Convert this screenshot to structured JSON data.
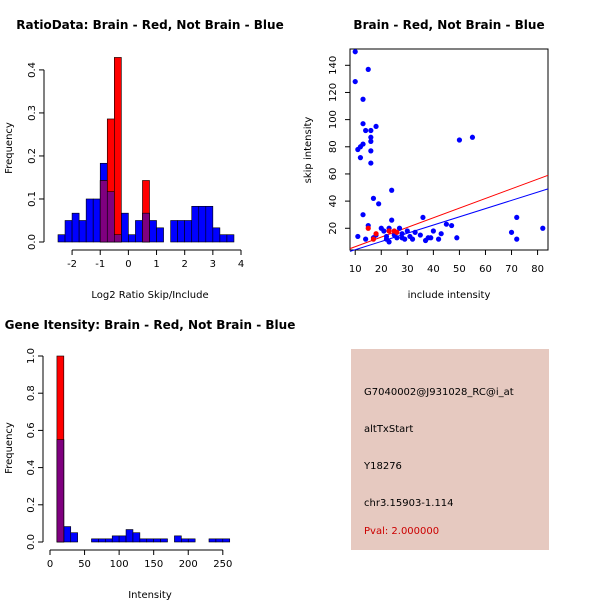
{
  "colors": {
    "red": "#ff0000",
    "blue": "#0000ff",
    "overlap": "#7f007f",
    "panel": "#e6c9c0",
    "pval": "#cc0000"
  },
  "chart_data": [
    {
      "type": "histogram",
      "title": "RatioData: Brain - Red, Not Brain - Blue",
      "xlabel": "Log2 Ratio Skip/Include",
      "ylabel": "Frequency",
      "xlim": [
        -2.5,
        4.0
      ],
      "ylim": [
        0,
        0.43
      ],
      "xticks": [
        -2,
        -1,
        0,
        1,
        2,
        3,
        4
      ],
      "yticks": [
        0.0,
        0.1,
        0.2,
        0.3,
        0.4
      ],
      "ytick_labels": [
        "0.0",
        "0.1",
        "0.2",
        "0.3",
        "0.4"
      ],
      "bin_width": 0.25,
      "series": [
        {
          "name": "Not Brain",
          "color": "blue",
          "bins": [
            [
              -2.5,
              0.017
            ],
            [
              -2.25,
              0.05
            ],
            [
              -2.0,
              0.067
            ],
            [
              -1.75,
              0.05
            ],
            [
              -1.5,
              0.1
            ],
            [
              -1.25,
              0.1
            ],
            [
              -1.0,
              0.183
            ],
            [
              -0.75,
              0.117
            ],
            [
              -0.5,
              0.017
            ],
            [
              -0.25,
              0.067
            ],
            [
              0.0,
              0.017
            ],
            [
              0.25,
              0.05
            ],
            [
              0.5,
              0.067
            ],
            [
              0.75,
              0.05
            ],
            [
              1.0,
              0.033
            ],
            [
              1.5,
              0.05
            ],
            [
              1.75,
              0.05
            ],
            [
              2.0,
              0.05
            ],
            [
              2.25,
              0.083
            ],
            [
              2.5,
              0.083
            ],
            [
              2.75,
              0.083
            ],
            [
              3.0,
              0.033
            ],
            [
              3.25,
              0.017
            ],
            [
              3.5,
              0.017
            ]
          ]
        },
        {
          "name": "Brain",
          "color": "red",
          "bins": [
            [
              -1.0,
              0.143
            ],
            [
              -0.75,
              0.286
            ],
            [
              -0.5,
              0.429
            ],
            [
              0.5,
              0.143
            ]
          ]
        }
      ]
    },
    {
      "type": "scatter",
      "title": "Brain - Red, Not Brain - Blue",
      "xlabel": "include intensity",
      "ylabel": "skip intensity",
      "xlim": [
        8,
        84
      ],
      "ylim": [
        4,
        152
      ],
      "xticks": [
        10,
        20,
        30,
        40,
        50,
        60,
        70,
        80
      ],
      "yticks": [
        20,
        40,
        60,
        80,
        100,
        120,
        140
      ],
      "lines": [
        {
          "color": "red",
          "x": [
            8,
            84
          ],
          "y": [
            5,
            59
          ]
        },
        {
          "color": "blue",
          "x": [
            8,
            84
          ],
          "y": [
            3,
            49
          ]
        }
      ],
      "series": [
        {
          "name": "Not Brain",
          "color": "blue",
          "points": [
            [
              10,
              150
            ],
            [
              10,
              128
            ],
            [
              11,
              78
            ],
            [
              11,
              14
            ],
            [
              12,
              80
            ],
            [
              12,
              72
            ],
            [
              13,
              115
            ],
            [
              13,
              97
            ],
            [
              13,
              82
            ],
            [
              13,
              30
            ],
            [
              14,
              92
            ],
            [
              14,
              12
            ],
            [
              15,
              137
            ],
            [
              15,
              22
            ],
            [
              16,
              92
            ],
            [
              16,
              87
            ],
            [
              16,
              84
            ],
            [
              16,
              77
            ],
            [
              16,
              68
            ],
            [
              17,
              42
            ],
            [
              17,
              13
            ],
            [
              18,
              95
            ],
            [
              18,
              15
            ],
            [
              19,
              38
            ],
            [
              20,
              20
            ],
            [
              21,
              18
            ],
            [
              22,
              12
            ],
            [
              22,
              14
            ],
            [
              23,
              20
            ],
            [
              23,
              10
            ],
            [
              24,
              48
            ],
            [
              24,
              26
            ],
            [
              25,
              15
            ],
            [
              26,
              13
            ],
            [
              27,
              20
            ],
            [
              28,
              16
            ],
            [
              28,
              13
            ],
            [
              29,
              12
            ],
            [
              30,
              18
            ],
            [
              31,
              14
            ],
            [
              32,
              12
            ],
            [
              33,
              17
            ],
            [
              35,
              15
            ],
            [
              36,
              28
            ],
            [
              37,
              11
            ],
            [
              38,
              13
            ],
            [
              39,
              13
            ],
            [
              40,
              18
            ],
            [
              42,
              12
            ],
            [
              43,
              16
            ],
            [
              45,
              23
            ],
            [
              47,
              22
            ],
            [
              49,
              13
            ],
            [
              50,
              85
            ],
            [
              55,
              87
            ],
            [
              70,
              17
            ],
            [
              72,
              28
            ],
            [
              72,
              12
            ],
            [
              82,
              20
            ]
          ]
        },
        {
          "name": "Brain",
          "color": "red",
          "points": [
            [
              15,
              20
            ],
            [
              17,
              12
            ],
            [
              18,
              16
            ],
            [
              23,
              18
            ],
            [
              25,
              18
            ],
            [
              26,
              17
            ]
          ]
        }
      ]
    },
    {
      "type": "histogram",
      "title": "Gene Itensity: Brain - Red, Not Brain - Blue",
      "xlabel": "Intensity",
      "ylabel": "Frequency",
      "xlim": [
        0,
        285
      ],
      "ylim": [
        0,
        1.0
      ],
      "xticks": [
        0,
        50,
        100,
        150,
        200,
        250
      ],
      "yticks": [
        0.0,
        0.2,
        0.4,
        0.6,
        0.8,
        1.0
      ],
      "ytick_labels": [
        "0.0",
        "0.2",
        "0.4",
        "0.6",
        "0.8",
        "1.0"
      ],
      "bin_width": 10,
      "series": [
        {
          "name": "Not Brain",
          "color": "blue",
          "bins": [
            [
              10,
              0.55
            ],
            [
              20,
              0.083
            ],
            [
              30,
              0.05
            ],
            [
              60,
              0.017
            ],
            [
              70,
              0.017
            ],
            [
              80,
              0.017
            ],
            [
              90,
              0.033
            ],
            [
              100,
              0.033
            ],
            [
              110,
              0.067
            ],
            [
              120,
              0.05
            ],
            [
              130,
              0.017
            ],
            [
              140,
              0.017
            ],
            [
              150,
              0.017
            ],
            [
              160,
              0.017
            ],
            [
              180,
              0.033
            ],
            [
              190,
              0.017
            ],
            [
              200,
              0.017
            ],
            [
              230,
              0.017
            ],
            [
              240,
              0.017
            ],
            [
              250,
              0.017
            ]
          ]
        },
        {
          "name": "Brain",
          "color": "red",
          "bins": [
            [
              10,
              1.0
            ]
          ]
        }
      ]
    }
  ],
  "info": {
    "probe_id": "G7040002@J931028_RC@i_at",
    "event_type": "altTxStart",
    "gene": "Y18276",
    "location": "chr3.15903-1.114",
    "pval": "Pval: 2.000000"
  }
}
